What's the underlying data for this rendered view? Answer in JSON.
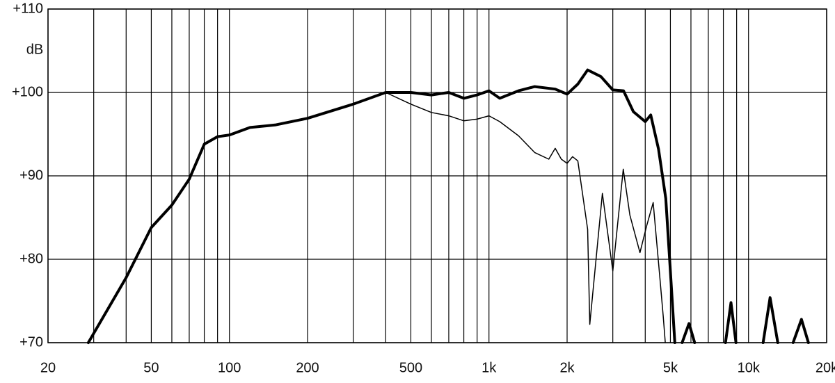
{
  "chart_data": {
    "type": "line",
    "y_label": "dB",
    "xscale": "log",
    "xlim": [
      20,
      20000
    ],
    "ylim": [
      70,
      110
    ],
    "xticks": [
      {
        "value": 20,
        "label": "20"
      },
      {
        "value": 50,
        "label": "50"
      },
      {
        "value": 100,
        "label": "100"
      },
      {
        "value": 200,
        "label": "200"
      },
      {
        "value": 500,
        "label": "500"
      },
      {
        "value": 1000,
        "label": "1k"
      },
      {
        "value": 2000,
        "label": "2k"
      },
      {
        "value": 5000,
        "label": "5k"
      },
      {
        "value": 10000,
        "label": "10k"
      },
      {
        "value": 20000,
        "label": "20k"
      }
    ],
    "xminor": [
      30,
      40,
      60,
      70,
      80,
      90,
      300,
      400,
      600,
      700,
      800,
      900,
      3000,
      4000,
      6000,
      7000,
      8000,
      9000
    ],
    "yticks": [
      {
        "value": 70,
        "label": "+70"
      },
      {
        "value": 80,
        "label": "+80"
      },
      {
        "value": 90,
        "label": "+90"
      },
      {
        "value": 100,
        "label": "+100"
      },
      {
        "value": 110,
        "label": "+110"
      }
    ],
    "grid": true,
    "series": [
      {
        "color": "#000000",
        "width": 4,
        "x": [
          28.6,
          40,
          50,
          60,
          70,
          80,
          90,
          100,
          120,
          150,
          200,
          300,
          400,
          500,
          600,
          700,
          800,
          900,
          1000,
          1100,
          1300,
          1500,
          1800,
          2000,
          2200,
          2400,
          2700,
          3000,
          3300,
          3600,
          4000,
          4200,
          4500,
          4800,
          5000,
          5200,
          null,
          5550,
          5900,
          6200,
          null,
          8150,
          8560,
          8950,
          null,
          11380,
          12110,
          12970,
          null,
          14850,
          15990,
          17010
        ],
        "values": [
          70,
          77.8,
          83.8,
          86.5,
          89.6,
          93.8,
          94.7,
          94.9,
          95.8,
          96.1,
          96.9,
          98.6,
          100,
          100,
          99.7,
          100,
          99.3,
          99.7,
          100.2,
          99.3,
          100.2,
          100.7,
          100.4,
          99.8,
          101,
          102.7,
          101.9,
          100.3,
          100.2,
          97.7,
          96.5,
          97.3,
          93.2,
          87.3,
          78.6,
          70,
          null,
          70,
          72.3,
          70,
          null,
          70,
          74.8,
          70,
          null,
          70,
          75.4,
          70,
          null,
          70,
          72.8,
          70
        ]
      },
      {
        "color": "#000000",
        "width": 1.5,
        "x": [
          400,
          500,
          600,
          700,
          800,
          900,
          1000,
          1100,
          1300,
          1500,
          1700,
          1800,
          1900,
          2000,
          2100,
          2200,
          2400,
          2446,
          2735,
          3000,
          3292,
          3490,
          3817,
          4050,
          4293,
          4555,
          4690,
          4780
        ],
        "values": [
          100,
          98.6,
          97.6,
          97.2,
          96.6,
          96.8,
          97.2,
          96.5,
          94.8,
          92.8,
          92,
          93.3,
          92,
          91.5,
          92.3,
          91.8,
          83.6,
          72.2,
          87.9,
          78.6,
          90.8,
          85.3,
          80.8,
          84,
          86.8,
          77.8,
          73.2,
          70
        ]
      }
    ]
  }
}
